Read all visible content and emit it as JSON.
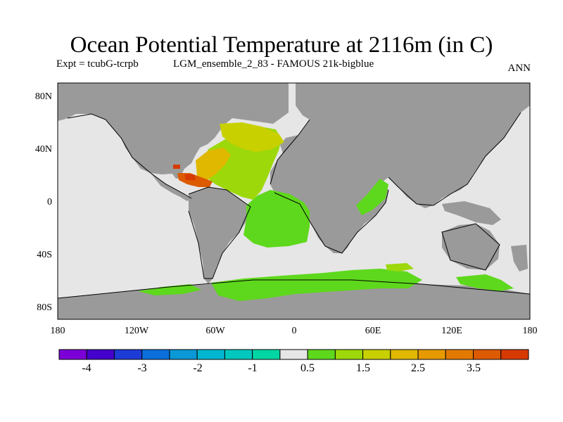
{
  "title": "Ocean Potential Temperature at 2116m (in C)",
  "expt": "Expt = tcubG-tcrpb",
  "run": "LGM_ensemble_2_83 - FAMOUS 21k-bigblue",
  "period": "ANN",
  "axes": {
    "x_ticks": [
      "180",
      "120W",
      "60W",
      "0",
      "60E",
      "120E",
      "180"
    ],
    "y_ticks": [
      "80N",
      "40N",
      "0",
      "40S",
      "80S"
    ]
  },
  "colorbar": {
    "colors": [
      "#7b00d7",
      "#4400cc",
      "#1d3bd6",
      "#0b6fdc",
      "#0a98d6",
      "#00b6d0",
      "#00c8be",
      "#00d6a4",
      "#e6e6e6",
      "#5ed81c",
      "#9dd80a",
      "#c8d000",
      "#e0b800",
      "#e69a00",
      "#e27a00",
      "#dc5a00",
      "#d63a00"
    ],
    "labels": [
      "-4",
      "-3",
      "-2",
      "-1",
      "0.5",
      "1.5",
      "2.5",
      "3.5"
    ]
  },
  "legend_colors": {
    "land": "#9a9a9a",
    "zero_ocean": "#e6e6e6"
  }
}
